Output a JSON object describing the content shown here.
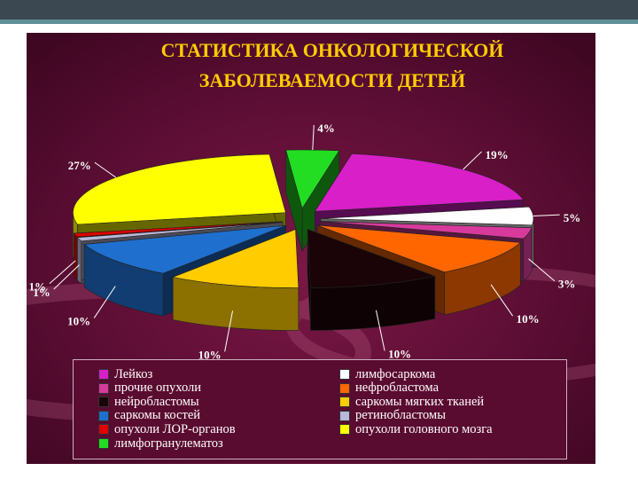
{
  "title_line1": "СТАТИСТИКА ОНКОЛОГИЧЕСКОЙ",
  "title_line2": "ЗАБОЛЕВАЕМОСТИ  ДЕТЕЙ",
  "colors": {
    "title": "#ffcc00",
    "background": "#5b0d33",
    "label": "#ffffff"
  },
  "chart_data": {
    "type": "pie",
    "title": "СТАТИСТИКА ОНКОЛОГИЧЕСКОЙ ЗАБОЛЕВАЕМОСТИ  ДЕТЕЙ",
    "style": "3d-exploded",
    "legend_position": "bottom",
    "slices": [
      {
        "name": "Лейкоз",
        "value": 19,
        "label": "19%",
        "color": "#d81fc8"
      },
      {
        "name": "лимфосаркома",
        "value": 5,
        "label": "5%",
        "color": "#ffffff"
      },
      {
        "name": "прочие опухоли",
        "value": 3,
        "label": "3%",
        "color": "#d83a9c"
      },
      {
        "name": "нефробластома",
        "value": 10,
        "label": "10%",
        "color": "#ff6600"
      },
      {
        "name": "нейробластомы",
        "value": 10,
        "label": "10%",
        "color": "#1a0408"
      },
      {
        "name": "саркомы мягких тканей",
        "value": 10,
        "label": "10%",
        "color": "#ffcc00"
      },
      {
        "name": "саркомы костей",
        "value": 10,
        "label": "10%",
        "color": "#1f6fcf"
      },
      {
        "name": "ретинобластомы",
        "value": 1,
        "label": "1%",
        "color": "#b8b8d8"
      },
      {
        "name": "опухоли ЛОР-органов",
        "value": 1,
        "label": "1%",
        "color": "#e00000"
      },
      {
        "name": "опухоли головного мозга",
        "value": 27,
        "label": "27%",
        "color": "#ffff00"
      },
      {
        "name": "лимфогранулематоз",
        "value": 4,
        "label": "4%",
        "color": "#22dd22"
      }
    ]
  },
  "legend": {
    "items": [
      {
        "label": "Лейкоз",
        "color": "#d81fc8"
      },
      {
        "label": "прочие опухоли",
        "color": "#d83a9c"
      },
      {
        "label": "нейробластомы",
        "color": "#1a0408"
      },
      {
        "label": "саркомы костей",
        "color": "#1f6fcf"
      },
      {
        "label": "опухоли ЛОР-органов",
        "color": "#e00000"
      },
      {
        "label": "лимфогранулематоз",
        "color": "#22dd22"
      },
      {
        "label": "лимфосаркома",
        "color": "#ffffff"
      },
      {
        "label": "нефробластома",
        "color": "#ff6600"
      },
      {
        "label": "саркомы мягких тканей",
        "color": "#ffcc00"
      },
      {
        "label": "ретинобластомы",
        "color": "#b8b8d8"
      },
      {
        "label": "опухоли головного мозга",
        "color": "#ffff00"
      }
    ]
  }
}
